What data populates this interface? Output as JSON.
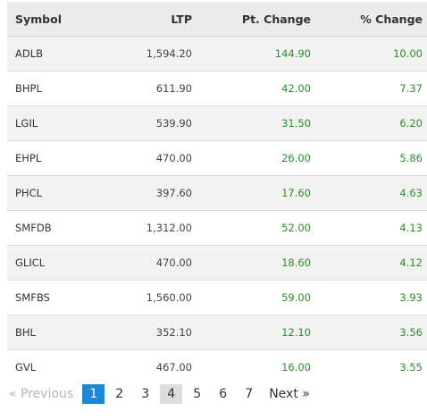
{
  "table": {
    "headers": {
      "symbol": "Symbol",
      "ltp": "LTP",
      "pt_change": "Pt. Change",
      "pct_change": "% Change"
    },
    "rows": [
      {
        "symbol": "ADLB",
        "ltp": "1,594.20",
        "pt_change": "144.90",
        "pct_change": "10.00"
      },
      {
        "symbol": "BHPL",
        "ltp": "611.90",
        "pt_change": "42.00",
        "pct_change": "7.37"
      },
      {
        "symbol": "LGIL",
        "ltp": "539.90",
        "pt_change": "31.50",
        "pct_change": "6.20"
      },
      {
        "symbol": "EHPL",
        "ltp": "470.00",
        "pt_change": "26.00",
        "pct_change": "5.86"
      },
      {
        "symbol": "PHCL",
        "ltp": "397.60",
        "pt_change": "17.60",
        "pct_change": "4.63"
      },
      {
        "symbol": "SMFDB",
        "ltp": "1,312.00",
        "pt_change": "52.00",
        "pct_change": "4.13"
      },
      {
        "symbol": "GLICL",
        "ltp": "470.00",
        "pt_change": "18.60",
        "pct_change": "4.12"
      },
      {
        "symbol": "SMFBS",
        "ltp": "1,560.00",
        "pt_change": "59.00",
        "pct_change": "3.93"
      },
      {
        "symbol": "BHL",
        "ltp": "352.10",
        "pt_change": "12.10",
        "pct_change": "3.56"
      },
      {
        "symbol": "GVL",
        "ltp": "467.00",
        "pt_change": "16.00",
        "pct_change": "3.55"
      }
    ]
  },
  "pagination": {
    "previous_label": "« Previous",
    "next_label": "Next »",
    "pages": [
      "1",
      "2",
      "3",
      "4",
      "5",
      "6",
      "7"
    ],
    "current_page": "1",
    "hovered_page": "4"
  },
  "colors": {
    "positive": "#2e8b2e",
    "active_page": "#1e88d6",
    "header_bg": "#ebebeb"
  }
}
